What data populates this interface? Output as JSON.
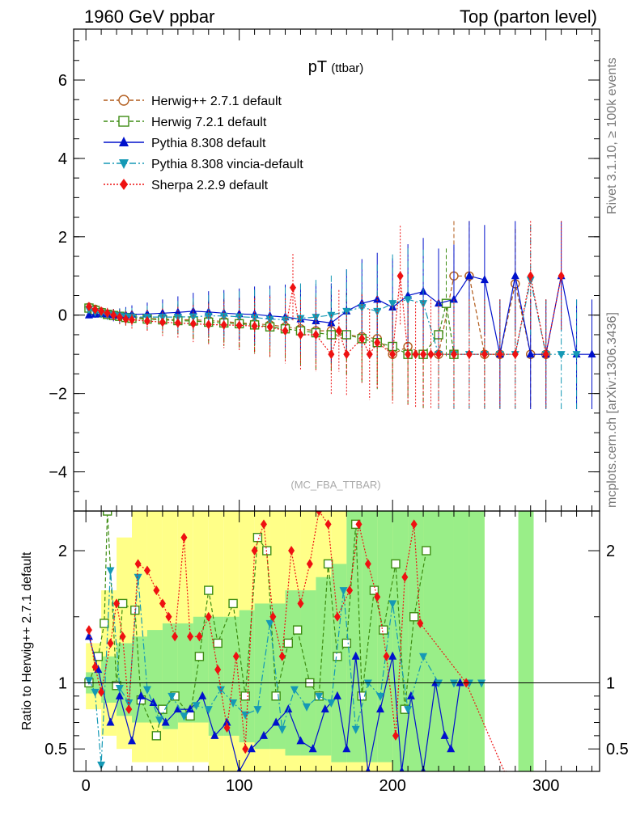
{
  "header": {
    "left": "1960 GeV ppbar",
    "right": "Top (parton level)"
  },
  "side_labels": {
    "top": "Rivet 3.1.10, ≥ 100k events",
    "bottom": "mcplots.cern.ch [arXiv:1306.3436]"
  },
  "chart_data": [
    {
      "type": "scatter",
      "title": "pT",
      "title_suffix": "(ttbar)",
      "watermark": "(MC_FBA_TTBAR)",
      "xlim": [
        -8,
        335
      ],
      "ylim": [
        -5,
        7.3
      ],
      "yticks": [
        "−4",
        "−2",
        "0",
        "2",
        "4",
        "6"
      ],
      "ytick_values": [
        -4,
        -2,
        0,
        2,
        4,
        6
      ],
      "series": [
        {
          "name": "Herwig++ 2.7.1 default",
          "color": "#b15a1a",
          "marker": "circle-open",
          "dash": "5,3",
          "x": [
            2,
            6,
            10,
            14,
            18,
            22,
            26,
            30,
            40,
            50,
            60,
            70,
            80,
            90,
            100,
            110,
            120,
            130,
            140,
            150,
            160,
            170,
            180,
            190,
            200,
            210,
            220,
            230,
            240,
            250,
            260,
            270,
            280,
            290,
            300
          ],
          "y": [
            0.2,
            0.15,
            0.08,
            0.03,
            0,
            -0.03,
            -0.05,
            -0.05,
            -0.08,
            -0.1,
            -0.12,
            -0.12,
            -0.14,
            -0.16,
            -0.2,
            -0.22,
            -0.25,
            -0.3,
            -0.35,
            -0.4,
            -0.4,
            -0.5,
            -0.55,
            -0.6,
            -1,
            -0.8,
            -1,
            -1,
            1,
            1,
            -1,
            -1,
            0.8,
            -1,
            -1
          ]
        },
        {
          "name": "Herwig 7.2.1 default",
          "color": "#3d8c12",
          "marker": "square-open",
          "dash": "5,3",
          "x": [
            2,
            6,
            10,
            14,
            18,
            22,
            26,
            30,
            40,
            50,
            60,
            70,
            80,
            90,
            100,
            110,
            120,
            130,
            140,
            150,
            160,
            170,
            180,
            190,
            200,
            210,
            220,
            230,
            235,
            240
          ],
          "y": [
            0.18,
            0.12,
            0.06,
            0.02,
            -0.01,
            -0.03,
            -0.06,
            -0.08,
            -0.1,
            -0.12,
            -0.14,
            -0.15,
            -0.18,
            -0.2,
            -0.22,
            -0.25,
            -0.3,
            -0.35,
            -0.4,
            -0.45,
            -0.5,
            -0.5,
            -0.6,
            -0.7,
            -0.8,
            -1,
            -1,
            -0.5,
            0.3,
            -1
          ]
        },
        {
          "name": "Pythia 8.308 default",
          "color": "#0011cc",
          "marker": "triangle-up",
          "dash": "",
          "x": [
            2,
            6,
            10,
            14,
            18,
            22,
            26,
            30,
            40,
            50,
            60,
            70,
            80,
            90,
            100,
            110,
            120,
            130,
            140,
            150,
            160,
            170,
            180,
            190,
            200,
            210,
            220,
            230,
            240,
            250,
            260,
            270,
            280,
            290,
            300,
            310,
            320,
            330
          ],
          "y": [
            0,
            0.02,
            0.04,
            0.02,
            0,
            -0.01,
            0,
            0.02,
            0.03,
            0.05,
            0.07,
            0.1,
            0.08,
            0.05,
            0.03,
            0.02,
            -0.02,
            -0.05,
            -0.1,
            -0.15,
            -0.2,
            0.1,
            0.3,
            0.4,
            0.2,
            0.5,
            0.6,
            0.3,
            0.4,
            1,
            0.9,
            -1,
            1,
            -1,
            -1,
            1,
            -1,
            -1
          ]
        },
        {
          "name": "Pythia 8.308 vincia-default",
          "color": "#1599b5",
          "marker": "triangle-down",
          "dash": "8,3,2,3",
          "x": [
            2,
            6,
            10,
            14,
            18,
            22,
            26,
            30,
            40,
            50,
            60,
            70,
            80,
            90,
            100,
            110,
            120,
            130,
            140,
            150,
            160,
            170,
            180,
            190,
            200,
            210,
            220,
            230,
            240,
            250,
            260,
            270,
            280,
            290,
            300,
            310,
            320
          ],
          "y": [
            0.15,
            0.08,
            0.05,
            0.02,
            0,
            -0.02,
            -0.04,
            -0.05,
            -0.05,
            -0.05,
            -0.05,
            -0.04,
            -0.02,
            -0.02,
            -0.04,
            -0.06,
            -0.1,
            -0.12,
            -0.08,
            -0.05,
            0,
            0.1,
            0.2,
            0.1,
            0.3,
            0.4,
            0.3,
            -1,
            -1,
            -1,
            -1,
            -1,
            -1,
            0.9,
            -1,
            -1,
            -1
          ]
        },
        {
          "name": "Sherpa 2.2.9 default",
          "color": "#ee1111",
          "marker": "diamond",
          "dash": "2,2",
          "x": [
            2,
            6,
            10,
            14,
            18,
            22,
            26,
            30,
            40,
            50,
            60,
            70,
            80,
            90,
            100,
            110,
            120,
            130,
            135,
            140,
            150,
            160,
            165,
            170,
            180,
            185,
            190,
            200,
            205,
            210,
            215,
            220,
            225,
            230,
            240,
            250,
            260,
            270,
            280,
            290,
            300,
            310
          ],
          "y": [
            0.22,
            0.14,
            0.1,
            0.05,
            0,
            -0.05,
            -0.1,
            -0.12,
            -0.15,
            -0.18,
            -0.2,
            -0.22,
            -0.24,
            -0.25,
            -0.26,
            -0.28,
            -0.3,
            -0.4,
            0.7,
            -0.5,
            -0.5,
            -1,
            -0.4,
            -1,
            -0.6,
            -1,
            -0.7,
            -1,
            1,
            -1,
            -1,
            -1,
            -1,
            -1,
            -1,
            -1,
            -1,
            -1,
            -1,
            1,
            -1,
            1
          ]
        }
      ],
      "legend_position": "top-left"
    },
    {
      "type": "scatter",
      "ylabel": "Ratio to Herwig++ 2.7.1 default",
      "xlim": [
        -8,
        335
      ],
      "ylim": [
        0.33,
        2.3
      ],
      "yticks": [
        "0.5",
        "1",
        "2"
      ],
      "ytick_values": [
        0.5,
        1,
        2
      ],
      "xticks": [
        "0",
        "100",
        "200",
        "300"
      ],
      "xtick_values": [
        0,
        100,
        200,
        300
      ],
      "reference_line": 1,
      "bands": [
        {
          "name": "",
          "color": "#ffff88",
          "x": [
            5,
            15,
            25,
            35,
            45,
            55,
            65,
            75,
            85,
            95,
            105,
            115,
            125,
            135,
            145,
            155,
            165,
            175,
            185,
            195,
            205,
            215,
            225,
            235,
            245,
            255
          ],
          "lo": [
            0.8,
            0.6,
            0.5,
            0.4,
            0.4,
            0.4,
            0.4,
            0.4,
            0.33,
            0.33,
            0.33,
            0.33,
            0.33,
            0.33,
            0.33,
            0.33,
            0.33,
            0.33,
            0.33,
            0.33,
            0.33,
            0.33,
            0.33,
            0.33,
            0.33,
            0.33
          ],
          "hi": [
            1.3,
            1.7,
            2.1,
            2.3,
            2.3,
            2.3,
            2.3,
            2.3,
            2.3,
            2.3,
            2.3,
            2.3,
            2.3,
            2.3,
            2.3,
            2.3,
            2.3,
            2.3,
            2.3,
            2.3,
            2.3,
            2.3,
            2.3,
            2.3,
            2.3,
            2.3
          ]
        },
        {
          "name": "",
          "color": "#99ee88",
          "x": [
            5,
            15,
            25,
            35,
            45,
            55,
            65,
            75,
            85,
            95,
            105,
            115,
            125,
            135,
            145,
            155,
            165,
            175,
            185,
            195,
            205,
            215,
            225,
            235,
            245,
            255,
            287
          ],
          "lo": [
            0.92,
            0.85,
            0.75,
            0.7,
            0.7,
            0.65,
            0.7,
            0.7,
            0.6,
            0.6,
            0.55,
            0.5,
            0.5,
            0.45,
            0.45,
            0.45,
            0.4,
            0.4,
            0.4,
            0.4,
            0.33,
            0.33,
            0.33,
            0.33,
            0.33,
            0.33,
            0.33
          ],
          "hi": [
            1.08,
            1.2,
            1.3,
            1.35,
            1.4,
            1.45,
            1.45,
            1.5,
            1.5,
            1.5,
            1.55,
            1.6,
            1.6,
            1.7,
            1.7,
            1.8,
            1.9,
            2.3,
            2.3,
            2.3,
            2.3,
            2.3,
            2.3,
            2.3,
            2.3,
            2.3,
            2.3
          ]
        }
      ],
      "series": [
        {
          "name": "Herwig 7.2.1 default",
          "color": "#3d8c12",
          "marker": "square-open",
          "dash": "5,3",
          "x": [
            2,
            8,
            12,
            14,
            20,
            24,
            32,
            36,
            46,
            50,
            58,
            68,
            74,
            80,
            86,
            96,
            104,
            112,
            118,
            124,
            132,
            138,
            146,
            152,
            158,
            164,
            170,
            176,
            180,
            188,
            194,
            202,
            208,
            214,
            222
          ],
          "y": [
            1,
            1.2,
            1.45,
            2.3,
            0.98,
            1.6,
            1.55,
            0.87,
            0.6,
            0.8,
            0.9,
            0.75,
            1.2,
            1.7,
            1.3,
            1.6,
            0.9,
            2.1,
            2.0,
            0.9,
            1.3,
            1.4,
            1.0,
            0.9,
            1.9,
            1.2,
            1.3,
            2.2,
            0.9,
            1.7,
            1.4,
            1.9,
            0.8,
            1.5,
            2.0
          ]
        },
        {
          "name": "Pythia 8.308 default",
          "color": "#0011cc",
          "marker": "triangle-up",
          "dash": "",
          "x": [
            2,
            8,
            16,
            22,
            30,
            36,
            44,
            52,
            60,
            68,
            76,
            84,
            92,
            100,
            108,
            116,
            124,
            132,
            140,
            148,
            156,
            164,
            170,
            176,
            184,
            192,
            200,
            206,
            212,
            220,
            228,
            234,
            238,
            244
          ],
          "y": [
            1.35,
            1.1,
            0.7,
            0.9,
            0.56,
            0.9,
            0.85,
            0.7,
            0.8,
            0.8,
            0.9,
            0.6,
            0.7,
            0.33,
            0.5,
            0.6,
            0.7,
            0.8,
            0.56,
            0.5,
            0.8,
            0.9,
            0.5,
            1.2,
            0.33,
            0.8,
            1.2,
            0.33,
            0.9,
            0.33,
            1,
            0.6,
            0.5,
            1
          ]
        },
        {
          "name": "Pythia 8.308 vincia-default",
          "color": "#1599b5",
          "marker": "triangle-down",
          "dash": "8,3,2,3",
          "x": [
            2,
            6,
            10,
            16,
            22,
            28,
            34,
            40,
            48,
            56,
            64,
            72,
            80,
            88,
            96,
            104,
            112,
            120,
            128,
            136,
            144,
            152,
            160,
            168,
            176,
            184,
            192,
            200,
            210,
            220,
            230,
            240,
            250,
            258
          ],
          "y": [
            1.02,
            0.93,
            0.38,
            1.85,
            0.96,
            0.85,
            1.8,
            0.95,
            0.72,
            0.9,
            0.75,
            0.83,
            0.8,
            0.95,
            0.85,
            0.76,
            0.8,
            1.45,
            0.65,
            0.95,
            0.82,
            0.9,
            0.85,
            1.7,
            0.65,
            1.0,
            0.9,
            1.6,
            0.8,
            1.2,
            1,
            1,
            1,
            1
          ]
        },
        {
          "name": "Sherpa 2.2.9 default",
          "color": "#ee1111",
          "marker": "diamond",
          "dash": "2,2",
          "x": [
            2,
            6,
            10,
            16,
            20,
            24,
            28,
            34,
            40,
            46,
            50,
            54,
            58,
            64,
            68,
            74,
            80,
            86,
            92,
            98,
            104,
            110,
            116,
            122,
            128,
            134,
            140,
            146,
            152,
            158,
            164,
            172,
            178,
            184,
            190,
            196,
            202,
            208,
            214,
            218,
            248,
            274
          ],
          "y": [
            1.4,
            1.12,
            0.93,
            1.3,
            1.6,
            1.35,
            0.8,
            1.9,
            1.85,
            1.7,
            1.6,
            1.5,
            1.35,
            2.1,
            1.35,
            1.35,
            1.5,
            1.1,
            0.66,
            1.2,
            0.5,
            2.0,
            2.2,
            1.5,
            1.2,
            2.0,
            1.6,
            1.9,
            2.3,
            2.2,
            1.5,
            1.7,
            2.2,
            1.9,
            1.65,
            1.2,
            0.6,
            1.8,
            2.2,
            1.45,
            1,
            0.3
          ]
        }
      ]
    }
  ]
}
